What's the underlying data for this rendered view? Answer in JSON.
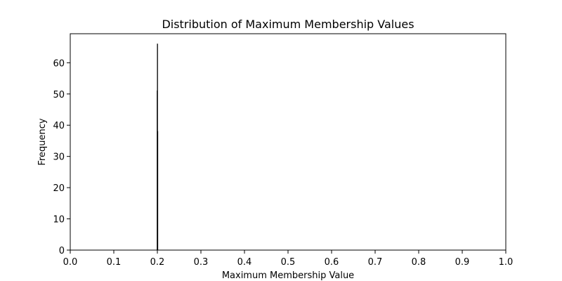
{
  "chart_data": {
    "type": "bar",
    "title": "Distribution of Maximum Membership Values",
    "xlabel": "Maximum Membership Value",
    "ylabel": "Frequency",
    "xlim": [
      0.0,
      1.0
    ],
    "ylim": [
      0,
      69.3
    ],
    "x_ticks": [
      "0.0",
      "0.1",
      "0.2",
      "0.3",
      "0.4",
      "0.5",
      "0.6",
      "0.7",
      "0.8",
      "0.9",
      "1.0"
    ],
    "y_ticks": [
      "0",
      "10",
      "20",
      "30",
      "40",
      "50",
      "60"
    ],
    "bins": [
      {
        "x_start": 0.1995,
        "x_end": 0.2,
        "value": 51
      },
      {
        "x_start": 0.2,
        "x_end": 0.2005,
        "value": 66
      },
      {
        "x_start": 0.2005,
        "x_end": 0.201,
        "value": 38
      }
    ],
    "bar_color": "#1f77b4",
    "edge_color": "#000000",
    "grid": false
  }
}
